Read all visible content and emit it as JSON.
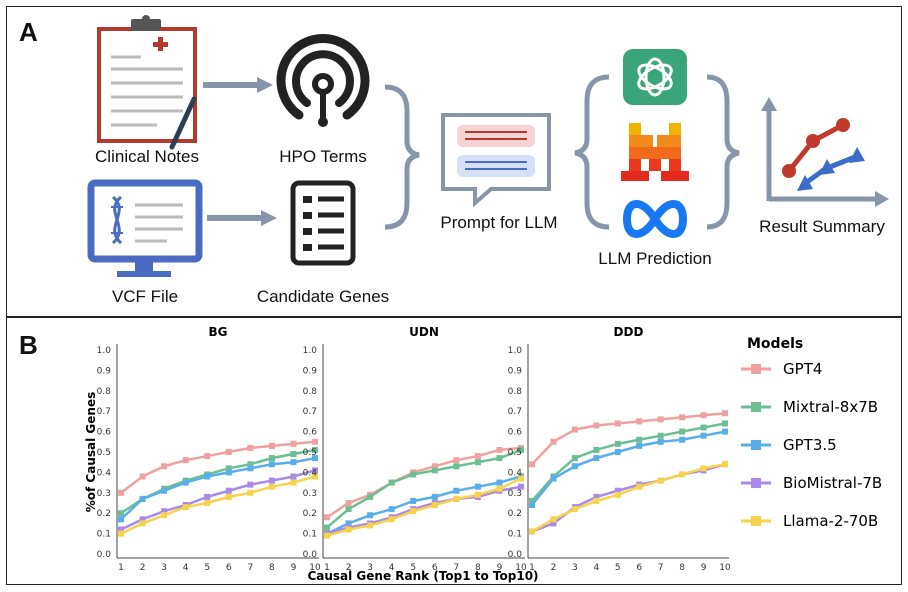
{
  "panel_a": {
    "label": "A",
    "clinical_notes": "Clinical Notes",
    "hpo_terms": "HPO Terms",
    "vcf_file": "VCF File",
    "candidate_genes": "Candidate Genes",
    "prompt": "Prompt for LLM",
    "prediction": "LLM Prediction",
    "result": "Result Summary"
  },
  "panel_b": {
    "label": "B",
    "colors": {
      "GPT4": "#f0a0a0",
      "Mixtral-8x7B": "#6dbf93",
      "GPT3.5": "#5aaee8",
      "BioMistral-7B": "#a98ae8",
      "Llama-2-70B": "#f5d34a"
    }
  },
  "chart_data": {
    "type": "line",
    "x": [
      1,
      2,
      3,
      4,
      5,
      6,
      7,
      8,
      9,
      10
    ],
    "xlabel": "Causal Gene Rank (Top1 to Top10)",
    "ylabel": "%of Causal Genes",
    "ylim": [
      0,
      1.0
    ],
    "yticks": [
      "0.0",
      "0.1",
      "0.2",
      "0.3",
      "0.4",
      "0.5",
      "0.6",
      "0.7",
      "0.8",
      "0.9",
      "1.0"
    ],
    "legend_title": "Models",
    "legend_position": "right",
    "panels": [
      {
        "title": "BG",
        "series": [
          {
            "name": "GPT4",
            "values": [
              0.3,
              0.38,
              0.43,
              0.46,
              0.48,
              0.5,
              0.52,
              0.53,
              0.54,
              0.55
            ]
          },
          {
            "name": "Mixtral-8x7B",
            "values": [
              0.2,
              0.27,
              0.32,
              0.36,
              0.39,
              0.42,
              0.44,
              0.47,
              0.49,
              0.51
            ]
          },
          {
            "name": "GPT3.5",
            "values": [
              0.17,
              0.27,
              0.31,
              0.35,
              0.38,
              0.4,
              0.42,
              0.44,
              0.45,
              0.47
            ]
          },
          {
            "name": "BioMistral-7B",
            "values": [
              0.12,
              0.17,
              0.21,
              0.24,
              0.28,
              0.31,
              0.34,
              0.36,
              0.38,
              0.41
            ]
          },
          {
            "name": "Llama-2-70B",
            "values": [
              0.1,
              0.15,
              0.19,
              0.23,
              0.25,
              0.28,
              0.3,
              0.33,
              0.35,
              0.38
            ]
          }
        ]
      },
      {
        "title": "UDN",
        "series": [
          {
            "name": "GPT4",
            "values": [
              0.18,
              0.25,
              0.29,
              0.35,
              0.4,
              0.43,
              0.46,
              0.48,
              0.51,
              0.52
            ]
          },
          {
            "name": "Mixtral-8x7B",
            "values": [
              0.13,
              0.22,
              0.28,
              0.35,
              0.39,
              0.41,
              0.43,
              0.45,
              0.47,
              0.51
            ]
          },
          {
            "name": "GPT3.5",
            "values": [
              0.1,
              0.15,
              0.19,
              0.22,
              0.26,
              0.28,
              0.31,
              0.33,
              0.35,
              0.38
            ]
          },
          {
            "name": "BioMistral-7B",
            "values": [
              0.1,
              0.13,
              0.15,
              0.18,
              0.22,
              0.25,
              0.27,
              0.28,
              0.31,
              0.33
            ]
          },
          {
            "name": "Llama-2-70B",
            "values": [
              0.09,
              0.12,
              0.14,
              0.17,
              0.21,
              0.24,
              0.27,
              0.29,
              0.32,
              0.37
            ]
          }
        ]
      },
      {
        "title": "DDD",
        "series": [
          {
            "name": "GPT4",
            "values": [
              0.44,
              0.55,
              0.61,
              0.63,
              0.64,
              0.65,
              0.66,
              0.67,
              0.68,
              0.69
            ]
          },
          {
            "name": "Mixtral-8x7B",
            "values": [
              0.26,
              0.38,
              0.47,
              0.51,
              0.54,
              0.56,
              0.58,
              0.6,
              0.62,
              0.64
            ]
          },
          {
            "name": "GPT3.5",
            "values": [
              0.24,
              0.37,
              0.43,
              0.47,
              0.5,
              0.53,
              0.55,
              0.56,
              0.58,
              0.6
            ]
          },
          {
            "name": "BioMistral-7B",
            "values": [
              0.11,
              0.15,
              0.23,
              0.28,
              0.31,
              0.34,
              0.36,
              0.39,
              0.41,
              0.44
            ]
          },
          {
            "name": "Llama-2-70B",
            "values": [
              0.11,
              0.17,
              0.22,
              0.26,
              0.29,
              0.33,
              0.36,
              0.39,
              0.42,
              0.44
            ]
          }
        ]
      }
    ]
  }
}
